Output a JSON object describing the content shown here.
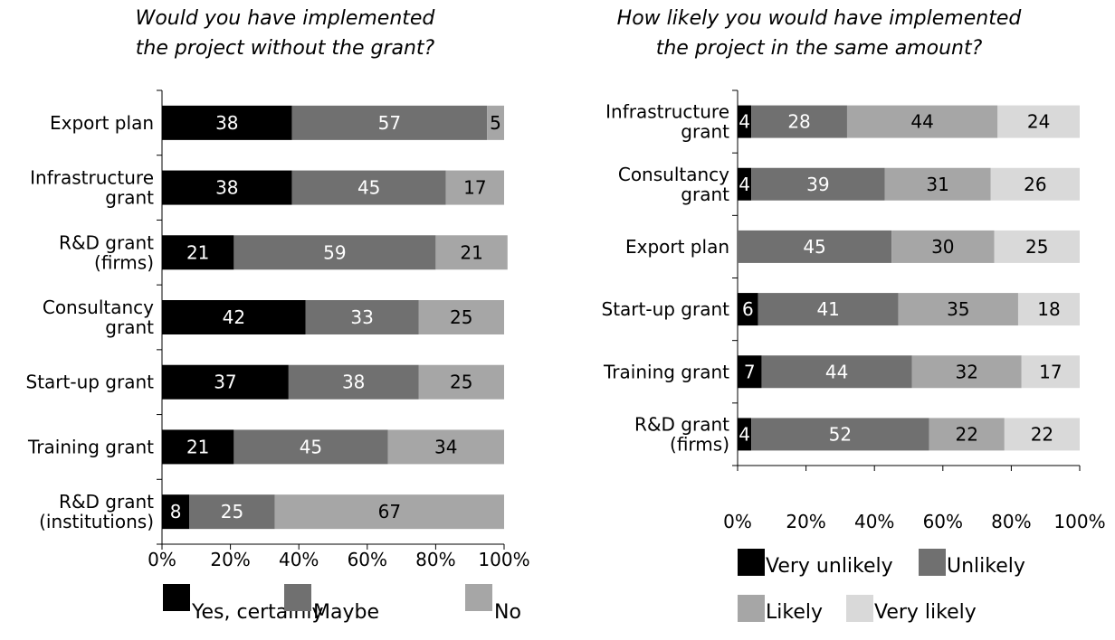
{
  "chart_data": [
    {
      "type": "bar",
      "orientation": "horizontal",
      "stacked": "percent",
      "title": "Would you have implemented\nthe project without the grant?",
      "categories": [
        "Export plan",
        "Infrastructure\ngrant",
        "R&D grant\n(firms)",
        "Consultancy\ngrant",
        "Start-up grant",
        "Training grant",
        "R&D grant\n(institutions)"
      ],
      "series": [
        {
          "name": "Yes, certainly",
          "color": "#000000",
          "label_color": "#ffffff",
          "values": [
            38,
            38,
            21,
            42,
            37,
            21,
            8
          ]
        },
        {
          "name": "Maybe",
          "color": "#707070",
          "label_color": "#ffffff",
          "values": [
            57,
            45,
            59,
            33,
            38,
            45,
            25
          ]
        },
        {
          "name": "No",
          "color": "#a6a6a6",
          "label_color": "#000000",
          "values": [
            5,
            17,
            21,
            25,
            25,
            34,
            67
          ]
        }
      ],
      "x_ticks": [
        "0%",
        "20%",
        "40%",
        "60%",
        "80%",
        "100%"
      ],
      "xlim": [
        0,
        100
      ],
      "legend": "bottom"
    },
    {
      "type": "bar",
      "orientation": "horizontal",
      "stacked": "percent",
      "title": "How likely you would have implemented\nthe project in the same amount?",
      "categories": [
        "Infrastructure\ngrant",
        "Consultancy\ngrant",
        "Export plan",
        "Start-up grant",
        "Training grant",
        "R&D grant\n(firms)"
      ],
      "series": [
        {
          "name": "Very unlikely",
          "color": "#000000",
          "label_color": "#ffffff",
          "values": [
            4,
            4,
            0,
            6,
            7,
            4
          ]
        },
        {
          "name": "Unlikely",
          "color": "#707070",
          "label_color": "#ffffff",
          "values": [
            28,
            39,
            45,
            41,
            44,
            52
          ]
        },
        {
          "name": "Likely",
          "color": "#a6a6a6",
          "label_color": "#000000",
          "values": [
            44,
            31,
            30,
            35,
            32,
            22
          ]
        },
        {
          "name": "Very likely",
          "color": "#d9d9d9",
          "label_color": "#000000",
          "values": [
            24,
            26,
            25,
            18,
            17,
            22
          ]
        }
      ],
      "x_ticks": [
        "0%",
        "20%",
        "40%",
        "60%",
        "80%",
        "100%"
      ],
      "xlim": [
        0,
        100
      ],
      "legend": "bottom"
    }
  ]
}
